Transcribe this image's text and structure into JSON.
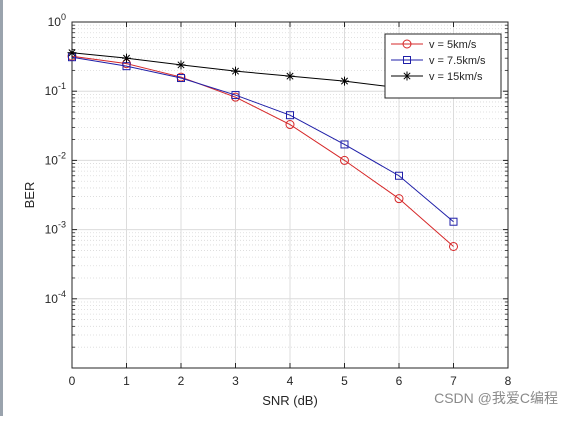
{
  "chart_data": {
    "type": "line",
    "title": "",
    "xlabel": "SNR (dB)",
    "ylabel": "BER",
    "xlim": [
      0,
      8
    ],
    "ylim": [
      1e-05,
      1
    ],
    "yscale": "log",
    "grid": true,
    "minor_grid": true,
    "legend_position": "top-right",
    "x_ticks": [
      "0",
      "1",
      "2",
      "3",
      "4",
      "5",
      "6",
      "7",
      "8"
    ],
    "y_ticks": [
      {
        "value": 0.0001,
        "base": "10",
        "exp": "-4"
      },
      {
        "value": 0.001,
        "base": "10",
        "exp": "-3"
      },
      {
        "value": 0.01,
        "base": "10",
        "exp": "-2"
      },
      {
        "value": 0.1,
        "base": "10",
        "exp": "-1"
      },
      {
        "value": 1,
        "base": "10",
        "exp": "0"
      }
    ],
    "x": [
      0,
      1,
      2,
      3,
      4,
      5,
      6,
      7
    ],
    "series": [
      {
        "name": "v = 5km/s",
        "color": "#d62728",
        "marker": "circle",
        "values": [
          0.32,
          0.25,
          0.16,
          0.082,
          0.033,
          0.01,
          0.0028,
          0.00057
        ]
      },
      {
        "name": "v = 7.5km/s",
        "color": "#1f1fa8",
        "marker": "square",
        "values": [
          0.31,
          0.23,
          0.155,
          0.088,
          0.045,
          0.017,
          0.006,
          0.0013
        ]
      },
      {
        "name": "v = 15km/s",
        "color": "#000000",
        "marker": "asterisk",
        "values": [
          0.36,
          0.3,
          0.24,
          0.195,
          0.165,
          0.14,
          0.112,
          0.096
        ]
      }
    ]
  },
  "watermark": "CSDN @我爱C编程"
}
